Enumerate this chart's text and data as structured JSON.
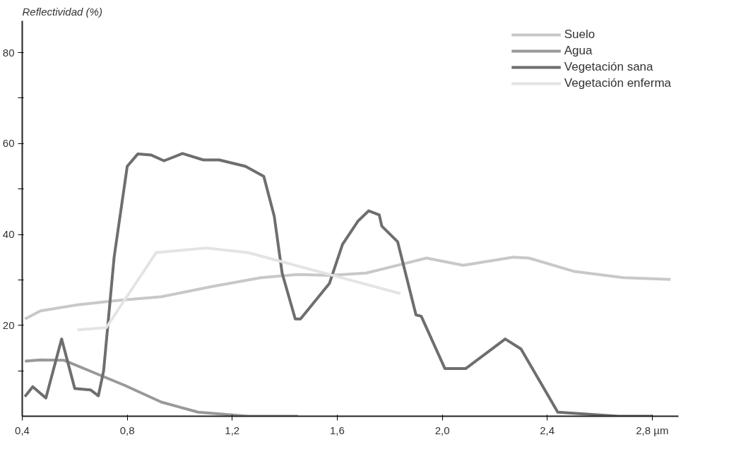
{
  "chart_data": {
    "type": "line",
    "ylabel": "Reflectividad (%)",
    "xlim": [
      0.4,
      2.9
    ],
    "ylim": [
      0,
      87
    ],
    "xticks": [
      {
        "value": 0.4,
        "label": "0,4"
      },
      {
        "value": 0.8,
        "label": "0,8"
      },
      {
        "value": 1.2,
        "label": "1,2"
      },
      {
        "value": 1.6,
        "label": "1,6"
      },
      {
        "value": 2.0,
        "label": "2,0"
      },
      {
        "value": 2.4,
        "label": "2,4"
      },
      {
        "value": 2.8,
        "label": "2,8 µm"
      }
    ],
    "yticks": [
      {
        "value": 10,
        "label": null
      },
      20,
      {
        "value": 30,
        "label": null
      },
      40,
      {
        "value": 50,
        "label": null
      },
      60,
      {
        "value": 70,
        "label": null
      },
      80
    ],
    "grid": false,
    "legend": "top right",
    "line_style": "solid",
    "marker": "none",
    "series": [
      {
        "name": "Suelo",
        "color": "#c8c8c8",
        "x": [
          0.41,
          0.47,
          0.61,
          0.75,
          0.93,
          1.12,
          1.31,
          1.45,
          1.57,
          1.71,
          1.85,
          1.94,
          2.08,
          2.27,
          2.33,
          2.5,
          2.69,
          2.87
        ],
        "values": [
          21.4,
          23.2,
          24.5,
          25.4,
          26.3,
          28.5,
          30.5,
          31.2,
          31,
          31.5,
          33.5,
          34.8,
          33.2,
          35,
          34.8,
          31.9,
          30.5,
          30.1
        ]
      },
      {
        "name": "Agua",
        "color": "#999999",
        "x": [
          0.41,
          0.47,
          0.56,
          0.66,
          0.79,
          0.93,
          1.07,
          1.26,
          1.45
        ],
        "values": [
          12.1,
          12.4,
          12.3,
          9.9,
          6.8,
          3.1,
          0.9,
          0,
          0
        ]
      },
      {
        "name": "Vegetación sana",
        "color": "#6e6e6e",
        "x": [
          0.41,
          0.44,
          0.49,
          0.55,
          0.6,
          0.66,
          0.69,
          0.71,
          0.75,
          0.78,
          0.8,
          0.84,
          0.89,
          0.94,
          1.01,
          1.09,
          1.15,
          1.25,
          1.32,
          1.36,
          1.39,
          1.44,
          1.46,
          1.57,
          1.62,
          1.68,
          1.72,
          1.76,
          1.77,
          1.83,
          1.9,
          1.92,
          2.01,
          2.09,
          2.24,
          2.3,
          2.44,
          2.67,
          2.8
        ],
        "values": [
          4.3,
          6.5,
          4.0,
          17,
          6.1,
          5.8,
          4.5,
          10,
          35,
          47,
          55,
          57.7,
          57.5,
          56.2,
          57.8,
          56.4,
          56.4,
          55,
          52.8,
          44,
          31.5,
          21.4,
          21.4,
          29.2,
          37.8,
          43,
          45.2,
          44.3,
          41.8,
          38.4,
          22.3,
          22,
          10.5,
          10.5,
          17,
          14.8,
          0.9,
          0,
          0
        ]
      },
      {
        "name": "Vegetación enferma",
        "color": "#e4e4e4",
        "x": [
          0.61,
          0.72,
          0.91,
          1.1,
          1.26,
          1.84
        ],
        "values": [
          19,
          19.5,
          36,
          37,
          36,
          27
        ]
      }
    ]
  }
}
